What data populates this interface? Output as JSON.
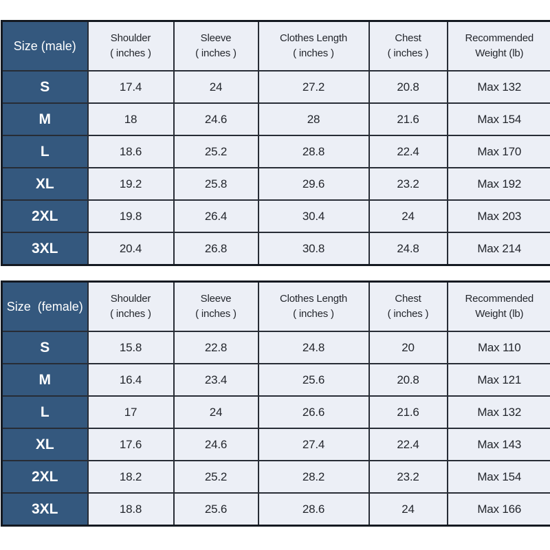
{
  "colors": {
    "header_blue": "#34587e",
    "cell_background": "#eceff6",
    "border_outer": "#141921",
    "border_inner": "#272c35",
    "text_dark": "#23262c",
    "text_white": "#ffffff",
    "page_background": "#ffffff"
  },
  "chart_data": [
    {
      "type": "table",
      "title": "Size (male)",
      "columns": [
        "Shoulder\n( inches )",
        "Sleeve\n( inches )",
        "Clothes Length\n( inches )",
        "Chest\n( inches )",
        "Recommended\nWeight (lb)"
      ],
      "rows": [
        {
          "size": "S",
          "values": [
            "17.4",
            "24",
            "27.2",
            "20.8",
            "Max 132"
          ]
        },
        {
          "size": "M",
          "values": [
            "18",
            "24.6",
            "28",
            "21.6",
            "Max 154"
          ]
        },
        {
          "size": "L",
          "values": [
            "18.6",
            "25.2",
            "28.8",
            "22.4",
            "Max 170"
          ]
        },
        {
          "size": "XL",
          "values": [
            "19.2",
            "25.8",
            "29.6",
            "23.2",
            "Max 192"
          ]
        },
        {
          "size": "2XL",
          "values": [
            "19.8",
            "26.4",
            "30.4",
            "24",
            "Max 203"
          ]
        },
        {
          "size": "3XL",
          "values": [
            "20.4",
            "26.8",
            "30.8",
            "24.8",
            "Max 214"
          ]
        }
      ]
    },
    {
      "type": "table",
      "title": "Size  (female)",
      "columns": [
        "Shoulder\n( inches )",
        "Sleeve\n( inches )",
        "Clothes Length\n( inches )",
        "Chest\n( inches )",
        "Recommended\nWeight (lb)"
      ],
      "rows": [
        {
          "size": "S",
          "values": [
            "15.8",
            "22.8",
            "24.8",
            "20",
            "Max 110"
          ]
        },
        {
          "size": "M",
          "values": [
            "16.4",
            "23.4",
            "25.6",
            "20.8",
            "Max 121"
          ]
        },
        {
          "size": "L",
          "values": [
            "17",
            "24",
            "26.6",
            "21.6",
            "Max 132"
          ]
        },
        {
          "size": "XL",
          "values": [
            "17.6",
            "24.6",
            "27.4",
            "22.4",
            "Max 143"
          ]
        },
        {
          "size": "2XL",
          "values": [
            "18.2",
            "25.2",
            "28.2",
            "23.2",
            "Max 154"
          ]
        },
        {
          "size": "3XL",
          "values": [
            "18.8",
            "25.6",
            "28.6",
            "24",
            "Max 166"
          ]
        }
      ]
    }
  ]
}
